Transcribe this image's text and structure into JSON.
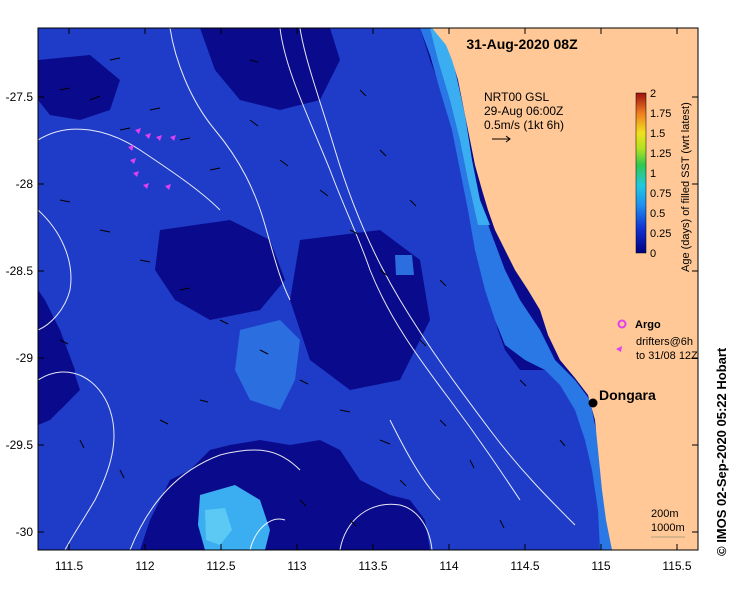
{
  "title": "31-Aug-2020 08Z",
  "product": {
    "line1": "NRT00 GSL",
    "line2": "29-Aug 06:00Z",
    "line3": "0.5m/s (1kt 6h)"
  },
  "colorbar": {
    "label": "Age (days) of filled SST (wrt latest)",
    "ticks": [
      "2",
      "1.75",
      "1.5",
      "1.25",
      "1",
      "0.75",
      "0.5",
      "0.25",
      "0"
    ]
  },
  "legend": {
    "argo": "Argo",
    "drifters_line1": "drifters@6h",
    "drifters_line2": "to 31/08 12Z"
  },
  "place": {
    "name": "Dongara"
  },
  "depth_labels": {
    "a": "200m",
    "b": "1000m"
  },
  "credit": "© IMOS 02-Sep-2020 05:22 Hobart",
  "axes": {
    "x_ticks": [
      "111.5",
      "112",
      "112.5",
      "113",
      "113.5",
      "114",
      "114.5",
      "115",
      "115.5"
    ],
    "y_ticks": [
      "-27.5",
      "-28",
      "-28.5",
      "-29",
      "-29.5",
      "-30"
    ]
  },
  "colors": {
    "land": "#ffc896",
    "deep": "#0a0a8c",
    "mid": "#1e3cc8",
    "light": "#2a78e6",
    "cyan": "#3aaef0",
    "argo": "#e040f0"
  }
}
